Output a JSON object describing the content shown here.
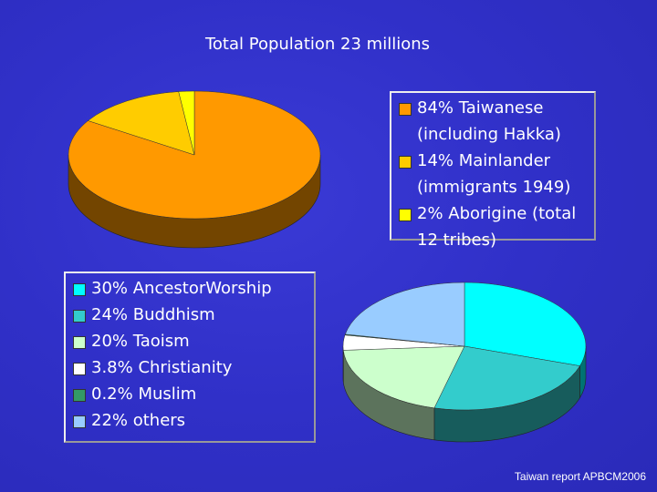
{
  "chart_data": [
    {
      "type": "pie3d",
      "title": "Total Population 23 millions",
      "categories": [
        "84% Taiwanese (including Hakka)",
        "14% Mainlander (immigrants 1949)",
        "2% Aborigine (total 12 tribes)"
      ],
      "values": [
        84,
        14,
        2
      ],
      "colors": [
        "#ff9900",
        "#ffcc00",
        "#ffff00"
      ]
    },
    {
      "type": "pie3d",
      "categories": [
        "30% AncestorWorship",
        "24% Buddhism",
        "20% Taoism",
        "3.8% Christianity",
        "0.2% Muslim",
        "22% others"
      ],
      "values": [
        30,
        24,
        20,
        3.8,
        0.2,
        22
      ],
      "colors": [
        "#00ffff",
        "#33cccc",
        "#ccffcc",
        "#ffffff",
        "#339966",
        "#99ccff"
      ]
    }
  ],
  "footer": "Taiwan report APBCM2006"
}
